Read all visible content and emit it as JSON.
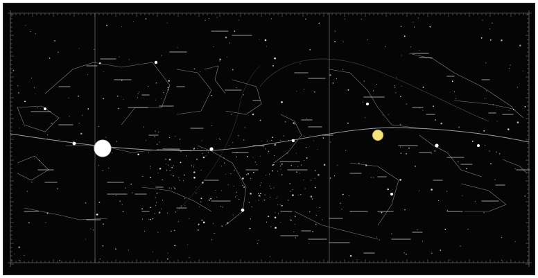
{
  "chart": {
    "title": "",
    "background": "#050505",
    "line_color": "#9a9a9a",
    "star_color": "#f2f2f2",
    "grid": true,
    "ecliptic": true
  },
  "bodies": [
    {
      "name": "sun-disk",
      "color": "#ffffff"
    },
    {
      "name": "planet-disk",
      "color": "#f3e27a"
    }
  ]
}
